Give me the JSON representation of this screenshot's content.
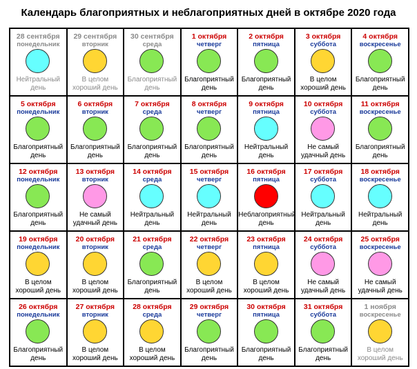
{
  "title": "Календарь благоприятных и неблагоприятных дней в октябре 2020 года",
  "colors": {
    "date_red": "#cc0000",
    "weekday_blue": "#1a3a9a",
    "muted_gray": "#8a8a8a",
    "neutral": "#66ffff",
    "favorable": "#88e854",
    "good": "#ffd633",
    "not_best": "#ff99e6",
    "unfavorable": "#ff0000"
  },
  "days": [
    {
      "date": "28 сентября",
      "weekday": "понедельник",
      "status": "Нейтральный день",
      "color": "#66ffff",
      "dim": true
    },
    {
      "date": "29 сентября",
      "weekday": "вторник",
      "status": "В целом хороший день",
      "color": "#ffd633",
      "dim": true
    },
    {
      "date": "30 сентября",
      "weekday": "среда",
      "status": "Благоприятный день",
      "color": "#88e854",
      "dim": true
    },
    {
      "date": "1 октября",
      "weekday": "четверг",
      "status": "Благоприятный день",
      "color": "#88e854",
      "dim": false
    },
    {
      "date": "2 октября",
      "weekday": "пятница",
      "status": "Благоприятный день",
      "color": "#88e854",
      "dim": false
    },
    {
      "date": "3 октября",
      "weekday": "суббота",
      "status": "В целом хороший день",
      "color": "#ffd633",
      "dim": false
    },
    {
      "date": "4 октября",
      "weekday": "воскресенье",
      "status": "Благоприятный день",
      "color": "#88e854",
      "dim": false
    },
    {
      "date": "5 октября",
      "weekday": "понедельник",
      "status": "Благоприятный день",
      "color": "#88e854",
      "dim": false
    },
    {
      "date": "6 октября",
      "weekday": "вторник",
      "status": "Благоприятный день",
      "color": "#88e854",
      "dim": false
    },
    {
      "date": "7 октября",
      "weekday": "среда",
      "status": "Благоприятный день",
      "color": "#88e854",
      "dim": false
    },
    {
      "date": "8 октября",
      "weekday": "четверг",
      "status": "Благоприятный день",
      "color": "#88e854",
      "dim": false
    },
    {
      "date": "9 октября",
      "weekday": "пятница",
      "status": "Нейтральный день",
      "color": "#66ffff",
      "dim": false
    },
    {
      "date": "10 октября",
      "weekday": "суббота",
      "status": "Не самый удачный день",
      "color": "#ff99e6",
      "dim": false
    },
    {
      "date": "11 октября",
      "weekday": "воскресенье",
      "status": "Благоприятный день",
      "color": "#88e854",
      "dim": false
    },
    {
      "date": "12 октября",
      "weekday": "понедельник",
      "status": "Благоприятный день",
      "color": "#88e854",
      "dim": false
    },
    {
      "date": "13 октября",
      "weekday": "вторник",
      "status": "Не самый удачный день",
      "color": "#ff99e6",
      "dim": false
    },
    {
      "date": "14 октября",
      "weekday": "среда",
      "status": "Нейтральный день",
      "color": "#66ffff",
      "dim": false
    },
    {
      "date": "15 октября",
      "weekday": "четверг",
      "status": "Нейтральный день",
      "color": "#66ffff",
      "dim": false
    },
    {
      "date": "16 октября",
      "weekday": "пятница",
      "status": "Неблагоприятный день",
      "color": "#ff0000",
      "dim": false
    },
    {
      "date": "17 октября",
      "weekday": "суббота",
      "status": "Нейтральный день",
      "color": "#66ffff",
      "dim": false
    },
    {
      "date": "18 октября",
      "weekday": "воскресенье",
      "status": "Нейтральный день",
      "color": "#66ffff",
      "dim": false
    },
    {
      "date": "19 октября",
      "weekday": "понедельник",
      "status": "В целом хороший день",
      "color": "#ffd633",
      "dim": false
    },
    {
      "date": "20 октября",
      "weekday": "вторник",
      "status": "В целом хороший день",
      "color": "#ffd633",
      "dim": false
    },
    {
      "date": "21 октября",
      "weekday": "среда",
      "status": "Благоприятный день",
      "color": "#88e854",
      "dim": false
    },
    {
      "date": "22 октября",
      "weekday": "четверг",
      "status": "В целом хороший день",
      "color": "#ffd633",
      "dim": false
    },
    {
      "date": "23 октября",
      "weekday": "пятница",
      "status": "В целом хороший день",
      "color": "#ffd633",
      "dim": false
    },
    {
      "date": "24 октября",
      "weekday": "суббота",
      "status": "Не самый удачный день",
      "color": "#ff99e6",
      "dim": false
    },
    {
      "date": "25 октября",
      "weekday": "воскресенье",
      "status": "Не самый удачный день",
      "color": "#ff99e6",
      "dim": false
    },
    {
      "date": "26 октября",
      "weekday": "понедельник",
      "status": "Благоприятный день",
      "color": "#88e854",
      "dim": false
    },
    {
      "date": "27 октября",
      "weekday": "вторник",
      "status": "В целом хороший день",
      "color": "#ffd633",
      "dim": false
    },
    {
      "date": "28 октября",
      "weekday": "среда",
      "status": "В целом хороший день",
      "color": "#ffd633",
      "dim": false
    },
    {
      "date": "29 октября",
      "weekday": "четверг",
      "status": "Благоприятный день",
      "color": "#88e854",
      "dim": false
    },
    {
      "date": "30 октября",
      "weekday": "пятница",
      "status": "Благоприятный день",
      "color": "#88e854",
      "dim": false
    },
    {
      "date": "31 октября",
      "weekday": "суббота",
      "status": "Благоприятный день",
      "color": "#88e854",
      "dim": false
    },
    {
      "date": "1 ноября",
      "weekday": "воскресенье",
      "status": "В целом хороший день",
      "color": "#ffd633",
      "dim": true
    }
  ]
}
